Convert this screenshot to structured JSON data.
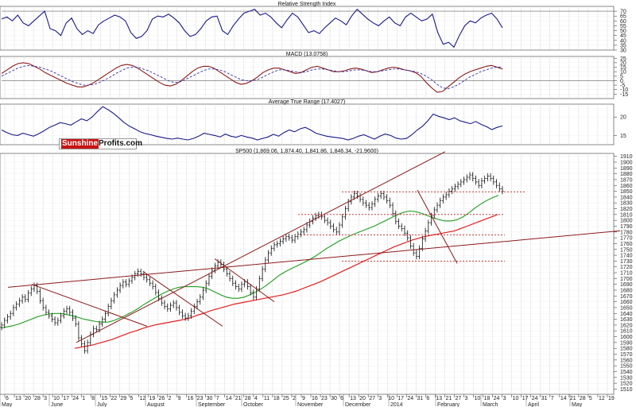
{
  "logo": {
    "part1": "Sunshine",
    "part2": "Profits.com"
  },
  "chart_data": [
    {
      "type": "line",
      "title": "Relative Strength Index",
      "ylim": [
        30,
        75
      ],
      "yticks": [
        30,
        35,
        40,
        45,
        50,
        55,
        60,
        65,
        70
      ],
      "hlines": [
        30,
        70
      ],
      "series": [
        {
          "color": "#1a1a8c",
          "values": [
            62,
            64,
            60,
            66,
            58,
            55,
            60,
            65,
            70,
            52,
            50,
            45,
            58,
            63,
            52,
            46,
            50,
            47,
            56,
            60,
            63,
            66,
            64,
            60,
            48,
            42,
            44,
            50,
            62,
            65,
            64,
            67,
            63,
            58,
            50,
            44,
            46,
            52,
            60,
            64,
            65,
            50,
            46,
            55,
            62,
            68,
            70,
            72,
            66,
            68,
            64,
            58,
            53,
            61,
            68,
            64,
            56,
            48,
            50,
            47,
            53,
            58,
            63,
            60,
            56,
            65,
            72,
            67,
            62,
            58,
            55,
            60,
            64,
            58,
            55,
            64,
            68,
            64,
            60,
            62,
            67,
            48,
            36,
            38,
            33,
            45,
            55,
            60,
            58,
            63,
            66,
            68,
            62,
            53
          ]
        }
      ]
    },
    {
      "type": "line",
      "title": "MACD (13.0758)",
      "ylim": [
        -20,
        27
      ],
      "yticks": [
        -15,
        -10,
        -5,
        0,
        5,
        10,
        15,
        20,
        25
      ],
      "hlines": [
        0
      ],
      "series": [
        {
          "color": "#8c1a1a",
          "values": [
            8,
            12,
            16,
            19,
            20,
            19,
            16,
            13,
            9,
            6,
            3,
            0,
            -3,
            -5,
            -7,
            -7,
            -5,
            -2,
            2,
            6,
            10,
            14,
            17,
            18,
            17,
            14,
            10,
            6,
            2,
            -2,
            -5,
            -6,
            -4,
            0,
            5,
            10,
            14,
            16,
            16,
            14,
            10,
            6,
            2,
            -2,
            -4,
            -3,
            0,
            4,
            9,
            12,
            14,
            14,
            12,
            10,
            8,
            9,
            12,
            15,
            16,
            14,
            12,
            10,
            10,
            11,
            13,
            14,
            13,
            11,
            9,
            10,
            12,
            14,
            15,
            14,
            12,
            11,
            9,
            5,
            -2,
            -8,
            -13,
            -12,
            -7,
            -2,
            3,
            7,
            10,
            12,
            14,
            16,
            17,
            15,
            13
          ]
        },
        {
          "color": "#3333aa",
          "values": [
            5,
            8,
            11,
            14,
            16,
            17,
            16,
            15,
            13,
            11,
            8,
            5,
            2,
            -1,
            -3,
            -5,
            -5,
            -4,
            -2,
            1,
            4,
            8,
            11,
            14,
            15,
            15,
            13,
            11,
            8,
            5,
            2,
            -1,
            -2,
            -1,
            2,
            5,
            8,
            11,
            13,
            13,
            12,
            10,
            7,
            4,
            1,
            0,
            0,
            1,
            4,
            7,
            10,
            12,
            12,
            11,
            10,
            9,
            10,
            12,
            13,
            13,
            12,
            11,
            10,
            10,
            11,
            12,
            12,
            11,
            10,
            10,
            11,
            12,
            13,
            13,
            12,
            11,
            10,
            8,
            5,
            1,
            -4,
            -8,
            -9,
            -7,
            -4,
            0,
            4,
            7,
            10,
            12,
            14,
            15,
            15
          ]
        }
      ]
    },
    {
      "type": "line",
      "title": "Average True Range (17.4027)",
      "ylim": [
        12.5,
        23.5
      ],
      "yticks": [
        15,
        20
      ],
      "series": [
        {
          "color": "#1a1a8c",
          "values": [
            16.5,
            15.8,
            15.2,
            15.0,
            15.6,
            15.2,
            14.8,
            15.5,
            16.3,
            17.2,
            17.8,
            18.5,
            18.2,
            17.8,
            18.7,
            19.5,
            19.0,
            20.0,
            21.5,
            22.8,
            22.0,
            21.0,
            19.8,
            18.5,
            17.5,
            16.8,
            16.0,
            15.5,
            15.2,
            14.8,
            14.5,
            14.2,
            14.0,
            14.3,
            14.0,
            13.8,
            14.2,
            14.8,
            15.6,
            15.3,
            15.0,
            14.6,
            15.4,
            14.8,
            14.5,
            15.0,
            14.6,
            14.3,
            13.8,
            14.2,
            14.6,
            15.3,
            14.8,
            15.8,
            16.5,
            16.0,
            16.8,
            17.2,
            16.5,
            15.6,
            15.2,
            14.8,
            14.6,
            14.4,
            14.2,
            13.8,
            14.2,
            14.8,
            15.2,
            14.6,
            14.0,
            14.8,
            15.4,
            15.0,
            14.3,
            14.0,
            14.2,
            15.2,
            16.5,
            17.5,
            19.0,
            20.8,
            20.2,
            19.8,
            19.3,
            19.8,
            19.0,
            18.6,
            18.2,
            18.8,
            18.0,
            17.4,
            16.6,
            17.2,
            17.6
          ]
        }
      ]
    },
    {
      "type": "line",
      "title": "SP500 (1,869.06, 1,874.40, 1,841.86, 1,846.34, -21.9600)",
      "ylim": [
        1501,
        1915
      ],
      "yticks": [
        1510,
        1520,
        1530,
        1540,
        1550,
        1560,
        1570,
        1580,
        1590,
        1600,
        1610,
        1620,
        1630,
        1640,
        1650,
        1660,
        1670,
        1680,
        1690,
        1700,
        1710,
        1720,
        1730,
        1740,
        1750,
        1760,
        1770,
        1780,
        1790,
        1800,
        1810,
        1820,
        1830,
        1840,
        1850,
        1860,
        1870,
        1880,
        1890,
        1900,
        1910
      ],
      "x_tick_labels": [
        "6",
        "13",
        "20",
        "28",
        "3",
        "10",
        "17",
        "24",
        "1",
        "8",
        "15",
        "22",
        "29",
        "5",
        "12",
        "19",
        "26",
        "2",
        "9",
        "16",
        "23",
        "30",
        "7",
        "14",
        "21",
        "28",
        "4",
        "11",
        "18",
        "25",
        "2",
        "9",
        "16",
        "23",
        "30",
        "6",
        "13",
        "20",
        "27",
        "3",
        "10",
        "17",
        "24",
        "31",
        "6",
        "13",
        "21",
        "27",
        "3",
        "10",
        "18",
        "24",
        "3",
        "10",
        "17",
        "24",
        "31",
        "7",
        "14",
        "21",
        "28",
        "5",
        "12",
        "19"
      ],
      "x_month_labels": [
        "May",
        "June",
        "July",
        "August",
        "September",
        "October",
        "November",
        "December",
        "2014",
        "February",
        "March",
        "April",
        "May"
      ],
      "ohlc_close": [
        1620,
        1628,
        1634,
        1640,
        1650,
        1656,
        1662,
        1668,
        1664,
        1675,
        1682,
        1688,
        1678,
        1662,
        1650,
        1642,
        1636,
        1630,
        1624,
        1628,
        1636,
        1644,
        1648,
        1642,
        1632,
        1622,
        1598,
        1588,
        1576,
        1590,
        1604,
        1614,
        1612,
        1622,
        1630,
        1640,
        1652,
        1662,
        1672,
        1680,
        1688,
        1694,
        1690,
        1696,
        1702,
        1708,
        1712,
        1708,
        1702,
        1698,
        1692,
        1686,
        1676,
        1666,
        1658,
        1652,
        1648,
        1654,
        1658,
        1650,
        1642,
        1636,
        1632,
        1636,
        1644,
        1652,
        1660,
        1668,
        1680,
        1692,
        1704,
        1714,
        1722,
        1728,
        1724,
        1716,
        1708,
        1700,
        1692,
        1686,
        1682,
        1690,
        1694,
        1686,
        1676,
        1668,
        1682,
        1700,
        1716,
        1732,
        1744,
        1752,
        1758,
        1760,
        1764,
        1768,
        1772,
        1770,
        1766,
        1772,
        1776,
        1780,
        1784,
        1792,
        1798,
        1804,
        1808,
        1810,
        1806,
        1800,
        1796,
        1790,
        1784,
        1780,
        1792,
        1806,
        1820,
        1832,
        1840,
        1846,
        1842,
        1836,
        1830,
        1826,
        1822,
        1828,
        1836,
        1842,
        1846,
        1840,
        1834,
        1826,
        1812,
        1798,
        1790,
        1786,
        1778,
        1770,
        1756,
        1744,
        1738,
        1752,
        1768,
        1782,
        1796,
        1808,
        1818,
        1826,
        1834,
        1840,
        1844,
        1850,
        1854,
        1858,
        1862,
        1866,
        1870,
        1874,
        1878,
        1872,
        1866,
        1860,
        1868,
        1872,
        1876,
        1872,
        1866,
        1860,
        1854,
        1850
      ],
      "ma_green": [
        1615,
        1617,
        1619,
        1622,
        1626,
        1630,
        1634,
        1637,
        1639,
        1640,
        1640,
        1638,
        1636,
        1633,
        1630,
        1628,
        1626,
        1625,
        1625,
        1628,
        1632,
        1637,
        1642,
        1648,
        1655,
        1661,
        1667,
        1673,
        1678,
        1682,
        1685,
        1686,
        1686,
        1686,
        1685,
        1682,
        1677,
        1672,
        1668,
        1666,
        1666,
        1668,
        1672,
        1677,
        1683,
        1690,
        1698,
        1706,
        1712,
        1717,
        1722,
        1727,
        1732,
        1738,
        1745,
        1752,
        1758,
        1764,
        1769,
        1774,
        1778,
        1782,
        1786,
        1790,
        1795,
        1800,
        1805,
        1810,
        1814,
        1816,
        1815,
        1812,
        1808,
        1804,
        1801,
        1799,
        1799,
        1801,
        1806,
        1813,
        1821,
        1828,
        1834,
        1839,
        1843
      ],
      "ma_red": [
        1580,
        1582,
        1584,
        1586,
        1589,
        1592,
        1595,
        1599,
        1603,
        1607,
        1610,
        1614,
        1617,
        1620,
        1622,
        1624,
        1626,
        1628,
        1630,
        1633,
        1637,
        1640,
        1644,
        1647,
        1650,
        1653,
        1656,
        1658,
        1660,
        1662,
        1664,
        1666,
        1668,
        1670,
        1672,
        1675,
        1678,
        1682,
        1686,
        1690,
        1694,
        1699,
        1704,
        1709,
        1714,
        1719,
        1724,
        1729,
        1734,
        1739,
        1744,
        1749,
        1754,
        1758,
        1762,
        1766,
        1769,
        1772,
        1774,
        1776,
        1778,
        1780,
        1782,
        1786,
        1790,
        1794,
        1798,
        1802,
        1806,
        1810
      ]
    }
  ]
}
